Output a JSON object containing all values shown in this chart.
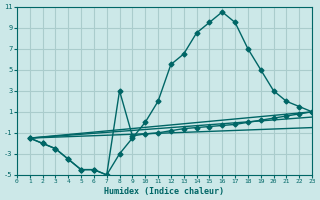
{
  "background_color": "#cce8e8",
  "grid_color": "#aacccc",
  "line_color": "#006666",
  "xlabel": "Humidex (Indice chaleur)",
  "xlim": [
    0,
    23
  ],
  "ylim": [
    -5,
    11
  ],
  "yticks": [
    -5,
    -3,
    -1,
    1,
    3,
    5,
    7,
    9,
    11
  ],
  "xticks": [
    0,
    1,
    2,
    3,
    4,
    5,
    6,
    7,
    8,
    9,
    10,
    11,
    12,
    13,
    14,
    15,
    16,
    17,
    18,
    19,
    20,
    21,
    22,
    23
  ],
  "line1_x": [
    1,
    2,
    3,
    4,
    5,
    6,
    7,
    8,
    9,
    10,
    11,
    12,
    13,
    14,
    15,
    16,
    17,
    18,
    19,
    20,
    21,
    22,
    23
  ],
  "line1_y": [
    -1.5,
    -2,
    -2.5,
    -3.5,
    -4.5,
    -4.5,
    -5,
    -3,
    -1.5,
    0,
    2,
    5.5,
    6.5,
    8.5,
    9.5,
    10.5,
    9.5,
    7.0,
    5.0,
    3.0,
    2.0,
    1.5,
    1.0
  ],
  "line2_x": [
    1,
    2,
    3,
    4,
    5,
    6,
    7,
    8,
    9,
    10,
    11,
    12,
    13,
    14,
    15,
    16,
    17,
    18,
    19,
    20,
    21,
    22,
    23
  ],
  "line2_y": [
    -1.5,
    -2,
    -2.5,
    -3.5,
    -4.5,
    -4.5,
    -5,
    3.0,
    -1.3,
    -1.1,
    -1.0,
    -0.8,
    -0.6,
    -0.5,
    -0.4,
    -0.3,
    -0.2,
    -0.0,
    0.2,
    0.4,
    0.6,
    0.8,
    1.0
  ],
  "line3_x": [
    1,
    23
  ],
  "line3_y": [
    -1.5,
    1.0
  ],
  "line4_x": [
    1,
    23
  ],
  "line4_y": [
    -1.5,
    0.5
  ],
  "line5_x": [
    1,
    23
  ],
  "line5_y": [
    -1.5,
    -0.5
  ]
}
